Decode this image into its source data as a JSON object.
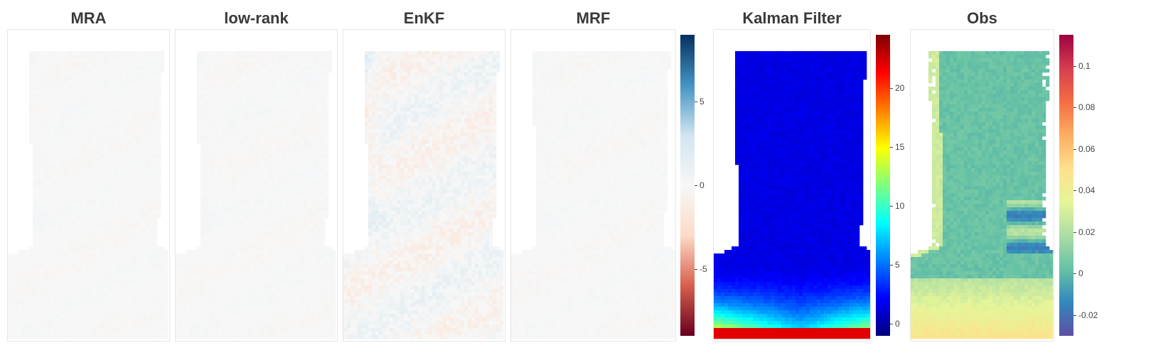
{
  "chart_data": [
    {
      "type": "heatmap",
      "title": "MRA",
      "colormap": "RdBu",
      "vlim": [
        -9,
        9
      ],
      "pattern": "diff",
      "intensity": 0.2
    },
    {
      "type": "heatmap",
      "title": "low-rank",
      "colormap": "RdBu",
      "vlim": [
        -9,
        9
      ],
      "pattern": "diff",
      "intensity": 0.22
    },
    {
      "type": "heatmap",
      "title": "EnKF",
      "colormap": "RdBu",
      "vlim": [
        -9,
        9
      ],
      "pattern": "diff",
      "intensity": 1.0
    },
    {
      "type": "heatmap",
      "title": "MRF",
      "colormap": "RdBu",
      "vlim": [
        -9,
        9
      ],
      "pattern": "diff",
      "intensity": 0.2,
      "colorbar": {
        "colors": [
          "#053061",
          "#4393c3",
          "#d1e5f0",
          "#f7f7f7",
          "#fddbc7",
          "#d6604d",
          "#67001f"
        ],
        "range": [
          -9,
          9
        ],
        "ticks": [
          5,
          0,
          -5
        ],
        "tick_labels": [
          "5",
          "0",
          "-5"
        ]
      }
    },
    {
      "type": "heatmap",
      "title": "Kalman Filter",
      "colormap": "jet",
      "vlim": [
        -1,
        24.5
      ],
      "pattern": "kalman",
      "colorbar": {
        "colors": [
          "#00007f",
          "#0000ff",
          "#007fff",
          "#00ffff",
          "#7fff7f",
          "#ffff00",
          "#ff7f00",
          "#ff0000",
          "#7f0000"
        ],
        "range": [
          -1,
          24.5
        ],
        "ticks": [
          20,
          15,
          10,
          5,
          0
        ],
        "tick_labels": [
          "20",
          "15",
          "10",
          "5",
          "0"
        ]
      }
    },
    {
      "type": "heatmap",
      "title": "Obs",
      "colormap": "Spectral",
      "vlim": [
        -0.03,
        0.115
      ],
      "pattern": "obs",
      "colorbar": {
        "colors": [
          "#5e4fa2",
          "#3288bd",
          "#66c2a5",
          "#abdda4",
          "#e6f598",
          "#fee08b",
          "#fdae61",
          "#f46d43",
          "#d53e4f",
          "#9e0142"
        ],
        "range": [
          -0.03,
          0.115
        ],
        "ticks": [
          0.1,
          0.08,
          0.06,
          0.04,
          0.02,
          0,
          -0.02
        ],
        "tick_labels": [
          "0.1",
          "0.08",
          "0.06",
          "0.04",
          "0.02",
          "0",
          "-0.02"
        ]
      }
    }
  ]
}
